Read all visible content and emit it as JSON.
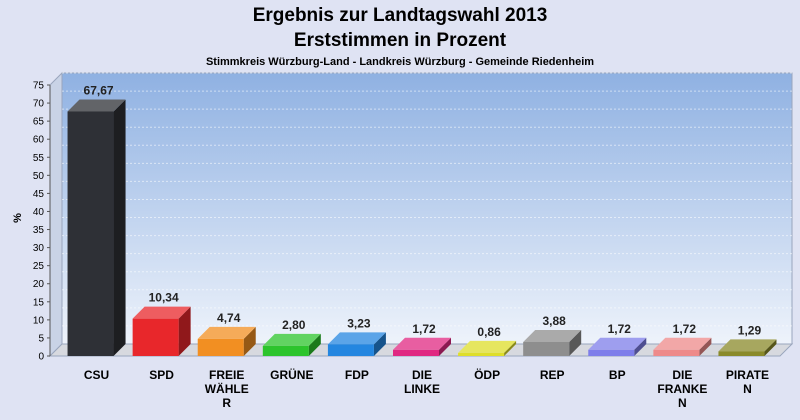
{
  "chart_data": {
    "type": "bar",
    "title": "Ergebnis zur Landtagswahl 2013",
    "subtitle": "Erststimmen in Prozent",
    "caption": "Stimmkreis Würzburg-Land - Landkreis Würzburg - Gemeinde Riedenheim",
    "ylabel": "%",
    "ylim": [
      0,
      75
    ],
    "yticks": [
      0,
      5,
      10,
      15,
      20,
      25,
      30,
      35,
      40,
      45,
      50,
      55,
      60,
      65,
      70,
      75
    ],
    "grid": true,
    "categories": [
      [
        "CSU"
      ],
      [
        "SPD"
      ],
      [
        "FREIE",
        "WÄHLE",
        "R"
      ],
      [
        "GRÜNE"
      ],
      [
        "FDP"
      ],
      [
        "DIE",
        "LINKE"
      ],
      [
        "ÖDP"
      ],
      [
        "REP"
      ],
      [
        "BP"
      ],
      [
        "DIE",
        "FRANKE",
        "N"
      ],
      [
        "PIRATE",
        "N"
      ]
    ],
    "values": [
      67.67,
      10.34,
      4.74,
      2.8,
      3.23,
      1.72,
      0.86,
      3.88,
      1.72,
      1.72,
      1.29
    ],
    "value_labels": [
      "67,67",
      "10,34",
      "4,74",
      "2,80",
      "3,23",
      "1,72",
      "0,86",
      "3,88",
      "1,72",
      "1,72",
      "1,29"
    ],
    "colors": [
      "#2e3036",
      "#e8272b",
      "#f28f22",
      "#2cc42c",
      "#2486e0",
      "#e02882",
      "#dede2a",
      "#8e8e8e",
      "#7e7eea",
      "#ee8a8a",
      "#8a8a2a"
    ],
    "plot_background": "#9fbfe8",
    "page_background": "#dfe3f3"
  }
}
